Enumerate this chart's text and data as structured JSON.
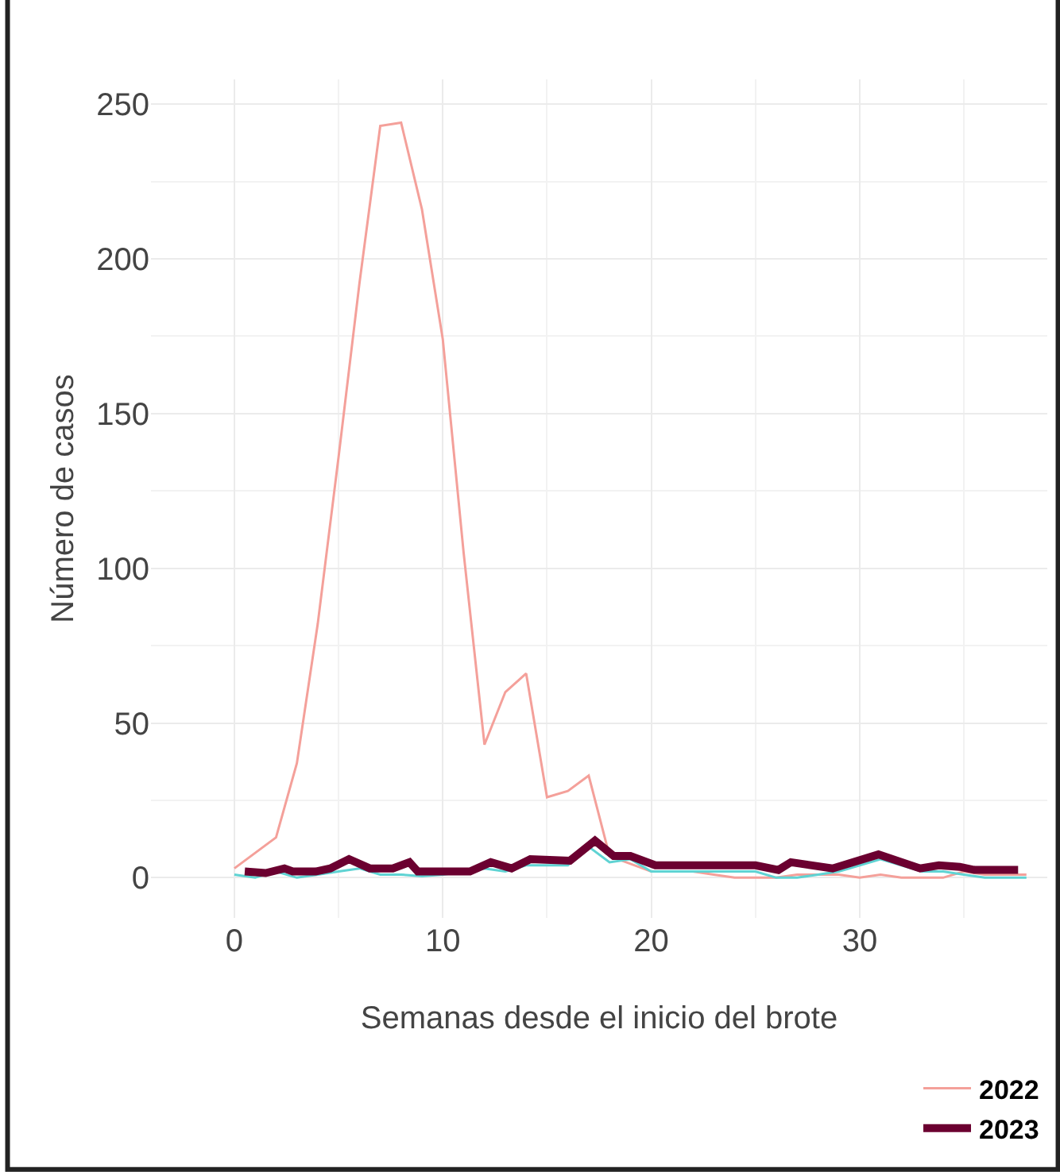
{
  "chart_data": {
    "type": "line",
    "xlabel": "Semanas desde el inicio del brote",
    "ylabel": "Número de casos",
    "xlim": [
      -4,
      39
    ],
    "xticks": [
      0,
      10,
      20,
      30
    ],
    "ylim": [
      -13,
      258
    ],
    "yticks": [
      0,
      50,
      100,
      150,
      200,
      250
    ],
    "grid": true,
    "legend": "bottom right",
    "marker": "none",
    "line_style": "solid",
    "series": [
      {
        "name": "2022",
        "color": "#f4a09a",
        "x": [
          0,
          1,
          2,
          3,
          4,
          5,
          6,
          7,
          8,
          9,
          10,
          11,
          12,
          13,
          14,
          15,
          16,
          17,
          18,
          19,
          20,
          21,
          22,
          23,
          24,
          25,
          26,
          27,
          28,
          29,
          30,
          31,
          32,
          33,
          34,
          35,
          36,
          37,
          38
        ],
        "values": [
          3,
          8,
          13,
          37,
          82,
          136,
          192,
          243,
          244,
          216,
          174,
          105,
          43,
          60,
          66,
          26,
          28,
          33,
          7,
          null,
          2,
          null,
          2,
          1,
          0,
          0,
          0,
          1,
          1,
          1,
          0,
          1,
          0,
          0,
          0,
          2,
          1,
          1,
          1
        ]
      },
      {
        "color": "#5fd3d3",
        "x": [
          0,
          1,
          2,
          3,
          4,
          5,
          6,
          7,
          8,
          9,
          10,
          11,
          12,
          13,
          14,
          15,
          16,
          17,
          18,
          19,
          20,
          21,
          22,
          23,
          24,
          25,
          26,
          27,
          28,
          29,
          30,
          31,
          32,
          33,
          34,
          35,
          36,
          37,
          38
        ],
        "values": [
          1,
          0,
          2,
          0,
          1,
          2,
          3,
          1,
          1,
          0.5,
          1,
          null,
          3,
          2,
          4,
          4,
          4,
          10,
          5,
          6,
          2,
          2,
          2,
          2,
          2,
          2,
          0,
          0,
          1,
          2,
          4,
          6,
          4,
          2,
          2,
          1,
          0,
          0,
          0
        ]
      },
      {
        "name": "2023",
        "color": "#6b0030",
        "x": [
          0.5,
          1.5,
          2.4,
          2.8,
          3.9,
          4.6,
          5.5,
          6.5,
          7.6,
          8.4,
          8.8,
          11.3,
          12.3,
          13.3,
          14.2,
          16.1,
          17.3,
          18.2,
          19,
          20.2,
          25,
          26.1,
          26.7,
          28.7,
          30.9,
          32.9,
          33.8,
          34.8,
          35.5,
          37.6
        ],
        "values": [
          2,
          1.5,
          3,
          2,
          2,
          3,
          6,
          3,
          3,
          5,
          2,
          2,
          5,
          3,
          6,
          5.5,
          12,
          7,
          7,
          4,
          4,
          2.5,
          5,
          3,
          7.5,
          3,
          4,
          3.5,
          2.5,
          2.5
        ]
      }
    ]
  }
}
